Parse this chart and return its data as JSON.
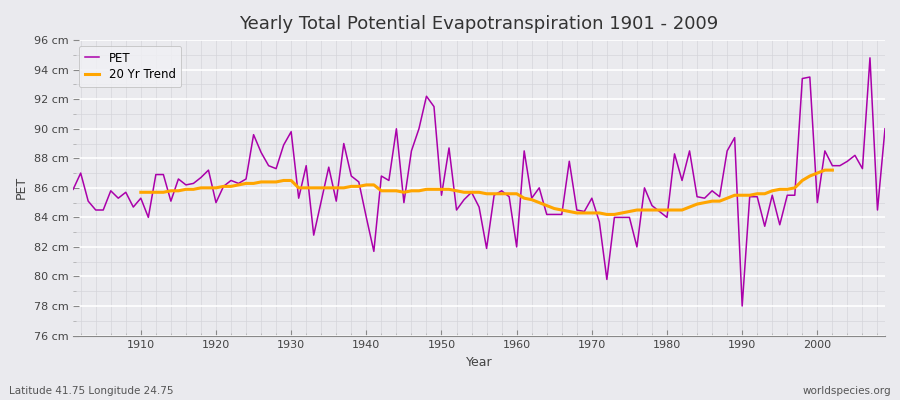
{
  "title": "Yearly Total Potential Evapotranspiration 1901 - 2009",
  "xlabel": "Year",
  "ylabel": "PET",
  "bottom_left_label": "Latitude 41.75 Longitude 24.75",
  "bottom_right_label": "worldspecies.org",
  "pet_color": "#AA00AA",
  "trend_color": "#FFA500",
  "background_color": "#EAEAEE",
  "plot_bg_color": "#EAEAEE",
  "grid_color": "#FFFFFF",
  "minor_grid_color": "#D8D8DC",
  "years": [
    1901,
    1902,
    1903,
    1904,
    1905,
    1906,
    1907,
    1908,
    1909,
    1910,
    1911,
    1912,
    1913,
    1914,
    1915,
    1916,
    1917,
    1918,
    1919,
    1920,
    1921,
    1922,
    1923,
    1924,
    1925,
    1926,
    1927,
    1928,
    1929,
    1930,
    1931,
    1932,
    1933,
    1934,
    1935,
    1936,
    1937,
    1938,
    1939,
    1940,
    1941,
    1942,
    1943,
    1944,
    1945,
    1946,
    1947,
    1948,
    1949,
    1950,
    1951,
    1952,
    1953,
    1954,
    1955,
    1956,
    1957,
    1958,
    1959,
    1960,
    1961,
    1962,
    1963,
    1964,
    1965,
    1966,
    1967,
    1968,
    1969,
    1970,
    1971,
    1972,
    1973,
    1974,
    1975,
    1976,
    1977,
    1978,
    1979,
    1980,
    1981,
    1982,
    1983,
    1984,
    1985,
    1986,
    1987,
    1988,
    1989,
    1990,
    1991,
    1992,
    1993,
    1994,
    1995,
    1996,
    1997,
    1998,
    1999,
    2000,
    2001,
    2002,
    2003,
    2004,
    2005,
    2006,
    2007,
    2008,
    2009
  ],
  "pet_values": [
    85.9,
    87.0,
    85.1,
    84.5,
    84.5,
    85.8,
    85.3,
    85.7,
    84.7,
    85.3,
    84.0,
    86.9,
    86.9,
    85.1,
    86.6,
    86.2,
    86.3,
    86.7,
    87.2,
    85.0,
    86.1,
    86.5,
    86.3,
    86.6,
    89.6,
    88.4,
    87.5,
    87.3,
    88.9,
    89.8,
    85.3,
    87.5,
    82.8,
    85.1,
    87.4,
    85.1,
    89.0,
    86.8,
    86.4,
    84.0,
    81.7,
    86.8,
    86.5,
    90.0,
    85.0,
    88.5,
    90.0,
    92.2,
    91.5,
    85.5,
    88.7,
    84.5,
    85.2,
    85.7,
    84.7,
    81.9,
    85.5,
    85.8,
    85.4,
    82.0,
    88.5,
    85.3,
    86.0,
    84.2,
    84.2,
    84.2,
    87.8,
    84.5,
    84.4,
    85.3,
    83.7,
    79.8,
    84.0,
    84.0,
    84.0,
    82.0,
    86.0,
    84.8,
    84.4,
    84.0,
    88.3,
    86.5,
    88.5,
    85.4,
    85.3,
    85.8,
    85.4,
    88.5,
    89.4,
    78.0,
    85.4,
    85.4,
    83.4,
    85.5,
    83.5,
    85.5,
    85.5,
    93.4,
    93.5,
    85.0,
    88.5,
    87.5,
    87.5,
    87.8,
    88.2,
    87.3,
    94.8,
    84.5,
    90.0
  ],
  "trend_values": [
    null,
    null,
    null,
    null,
    null,
    null,
    null,
    null,
    null,
    85.7,
    85.7,
    85.7,
    85.7,
    85.8,
    85.8,
    85.9,
    85.9,
    86.0,
    86.0,
    86.0,
    86.1,
    86.1,
    86.2,
    86.3,
    86.3,
    86.4,
    86.4,
    86.4,
    86.5,
    86.5,
    86.0,
    86.0,
    86.0,
    86.0,
    86.0,
    86.0,
    86.0,
    86.1,
    86.1,
    86.2,
    86.2,
    85.8,
    85.8,
    85.8,
    85.7,
    85.8,
    85.8,
    85.9,
    85.9,
    85.9,
    85.9,
    85.8,
    85.7,
    85.7,
    85.7,
    85.6,
    85.6,
    85.6,
    85.6,
    85.6,
    85.3,
    85.2,
    85.0,
    84.8,
    84.6,
    84.5,
    84.4,
    84.3,
    84.3,
    84.3,
    84.3,
    84.2,
    84.2,
    84.3,
    84.4,
    84.5,
    84.5,
    84.5,
    84.5,
    84.5,
    84.5,
    84.5,
    84.7,
    84.9,
    85.0,
    85.1,
    85.1,
    85.3,
    85.5,
    85.5,
    85.5,
    85.6,
    85.6,
    85.8,
    85.9,
    85.9,
    86.0,
    86.5,
    86.8,
    87.0,
    87.2,
    87.2,
    null,
    null,
    null,
    null,
    null,
    null,
    null
  ],
  "ylim": [
    76,
    96
  ],
  "yticks": [
    76,
    78,
    80,
    82,
    84,
    86,
    88,
    90,
    92,
    94,
    96
  ],
  "xlim": [
    1901,
    2009
  ],
  "xticks": [
    1910,
    1920,
    1930,
    1940,
    1950,
    1960,
    1970,
    1980,
    1990,
    2000
  ],
  "title_fontsize": 13,
  "label_fontsize": 9,
  "tick_fontsize": 8,
  "legend_fontsize": 8.5
}
